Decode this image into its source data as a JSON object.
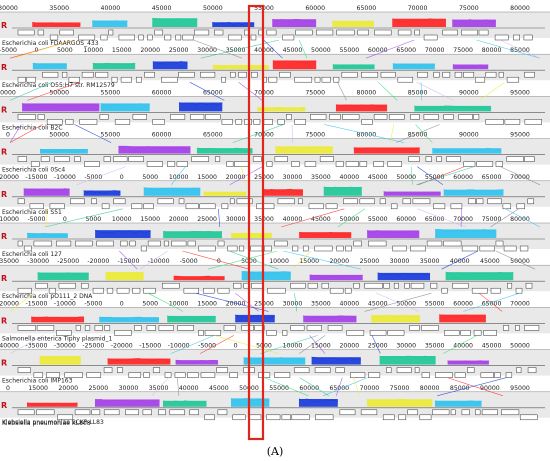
{
  "colors": {
    "band": "#e9e9e9",
    "highlight": "#e0251b",
    "strand": "#c0101a",
    "blocks": [
      "#ff2a2a",
      "#35c4ee",
      "#25c99b",
      "#a645e8",
      "#ecea3c",
      "#1f3fdc",
      "#8a8a8a",
      "#d8b4f0",
      "#35e07a"
    ]
  },
  "strand_marker": "R",
  "tracks": [
    {
      "name": "Escherichia coli FDAARGOS_433",
      "ticks": [
        "30000",
        "35000",
        "40000",
        "45000",
        "50000",
        "55000",
        "60000",
        "65000",
        "70000",
        "75000",
        "80000"
      ],
      "blocks": "r,1,2 | c,0,3 | g,1,2 | b,2,3 | p,1,3 | y,2,1 | r,0,2 | p,2,3"
    },
    {
      "name": "Escherichia coli O55:H7 str. RM12579",
      "ticks": [
        "-5000",
        "0",
        "5000",
        "10000",
        "15000",
        "20000",
        "25000",
        "30000",
        "35000",
        "40000",
        "45000",
        "50000",
        "55000",
        "60000",
        "65000",
        "70000",
        "75000",
        "80000",
        "85000"
      ],
      "blocks": "c,1,2 | g,0,2 | b,1,3 | y,0,1 | r,1,2 | g,2,3 | c,1,3 | p,0,2"
    },
    {
      "name": "Escherichia coli B2C",
      "ticks": [
        "0000",
        "50000",
        "55000",
        "60000",
        "65000",
        "70000",
        "75000",
        "80000",
        "85000",
        "90000",
        "95000"
      ],
      "blocks": "p,1,3 | c,0,2 | b,1,2 | y,0,1 | r,2,3 | g,0,2"
    },
    {
      "name": "Escherichia coli 0Sc4",
      "ticks": [
        "0",
        "50000",
        "55000",
        "60000",
        "65000",
        "70000",
        "75000",
        "80000",
        "85000",
        "90000",
        "95000"
      ],
      "blocks": "c,0,2 | p,1,3 | g,0,1 | y,1,2 | r,0,3 | c,2,2"
    },
    {
      "name": "Escherichia coli S51",
      "ticks": [
        "-20000",
        "-15000",
        "-10000",
        "-5000",
        "0",
        "5000",
        "10000",
        "15000",
        "20000",
        "25000",
        "30000",
        "35000",
        "40000",
        "45000",
        "50000",
        "55000",
        "60000",
        "65000",
        "70000"
      ],
      "blocks": "p,1,2 | b,0,3 | c,1,1 | y,0,2 | r,2,3 | g,1,2 | p,0,3 | c,2,1"
    },
    {
      "name": "Escherichia coli 127",
      "ticks": [
        "-10000",
        "-5000",
        "0",
        "5000",
        "10000",
        "15000",
        "20000",
        "25000",
        "30000",
        "35000",
        "40000",
        "45000",
        "50000",
        "55000",
        "60000",
        "65000",
        "70000",
        "75000",
        "80000"
      ],
      "blocks": "c,0,2 | b,1,3 | g,0,1 | y,2,2 | r,1,3 | p,0,2 | c,2,1"
    },
    {
      "name": "Escherichia coli pO111_2 DNA",
      "ticks": [
        "-35000",
        "-30000",
        "-25000",
        "-20000",
        "-15000",
        "-10000",
        "-5000",
        "0",
        "5000",
        "10000",
        "15000",
        "20000",
        "25000",
        "30000",
        "35000",
        "40000",
        "45000",
        "50000"
      ],
      "blocks": "g,0,1 | y,1,2 | r,2,3 | c,0,2 | p,1,3 | b,0,2 | g,2,1"
    },
    {
      "name": "Salmonella enterica Tiphy plasmid_1",
      "ticks": [
        "-20000",
        "-15000",
        "-10000",
        "-5000",
        "0",
        "5000",
        "10000",
        "15000",
        "20000",
        "25000",
        "30000",
        "35000",
        "40000",
        "45000",
        "50000",
        "55000",
        "60000",
        "65000",
        "70000"
      ],
      "blocks": "r,1,3 | c,0,2 | g,2,2 | b,1,3 | p,0,2 | y,2,1 | r,0,3"
    },
    {
      "name": "Escherichia coli IMP163",
      "ticks": [
        "-40000",
        "-35000",
        "-30000",
        "-25000",
        "-20000",
        "-15000",
        "-10000",
        "-5000",
        "0",
        "5000",
        "10000",
        "15000",
        "20000",
        "25000",
        "30000",
        "35000",
        "40000",
        "45000",
        "50000"
      ],
      "blocks": "y,0,2 | r,1,3 | p,2,2 | c,0,3 | b,1,2 | g,2,1 | p,0,2"
    },
    {
      "name": "Klebsiella pneumoniae KL808",
      "ticks": [
        "0",
        "15000",
        "20000",
        "25000",
        "30000",
        "35000",
        "40000",
        "45000",
        "50000",
        "55000",
        "60000",
        "65000",
        "70000",
        "75000",
        "80000",
        "85000",
        "90000",
        "95000"
      ],
      "blocks": "r,0,3 | p,1,2 | g,2,2 | c,0,3 | b,1,1 | y,0,2 | c,2,3"
    }
  ],
  "last_label": "Klebsiella pneumoniae SCKP-LL83",
  "caption": "(A)"
}
